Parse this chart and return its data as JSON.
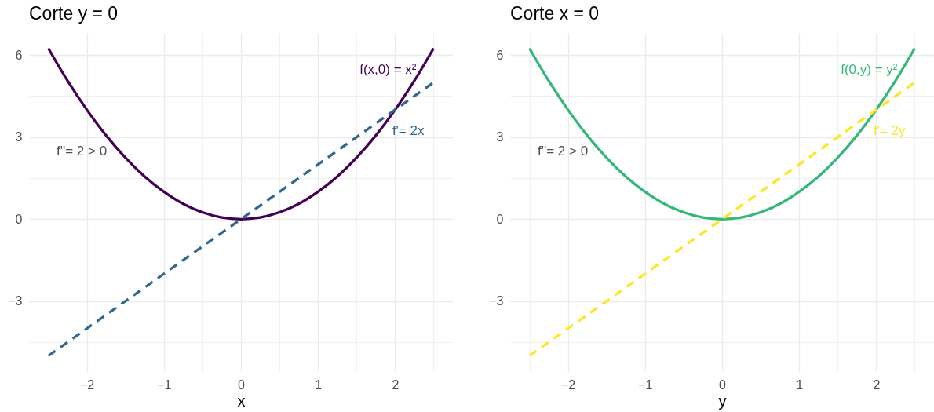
{
  "chart_data": [
    {
      "type": "line",
      "title": "Corte y = 0",
      "xlabel": "x",
      "series": [
        {
          "name": "f(x,0) = x²",
          "color": "#440154",
          "line_style": "solid",
          "x": [
            -2.5,
            -2.25,
            -2,
            -1.75,
            -1.5,
            -1.25,
            -1,
            -0.75,
            -0.5,
            -0.25,
            0,
            0.25,
            0.5,
            0.75,
            1,
            1.25,
            1.5,
            1.75,
            2,
            2.25,
            2.5
          ],
          "values": [
            6.25,
            5.06,
            4,
            3.06,
            2.25,
            1.56,
            1,
            0.56,
            0.25,
            0.06,
            0,
            0.06,
            0.25,
            0.56,
            1,
            1.56,
            2.25,
            3.06,
            4,
            5.06,
            6.25
          ]
        },
        {
          "name": "f'= 2x",
          "color": "#31688e",
          "line_style": "dashed",
          "x": [
            -2.5,
            2.5
          ],
          "values": [
            -5,
            5
          ]
        }
      ],
      "annotations": [
        "f''= 2 > 0"
      ],
      "xlim": [
        -2.75,
        2.75
      ],
      "ylim": [
        -5.56,
        6.81
      ],
      "xticks": [
        {
          "value": -2.5,
          "label": null
        },
        {
          "value": -2,
          "label": "−2"
        },
        {
          "value": -1.5,
          "label": null
        },
        {
          "value": -1,
          "label": "−1"
        },
        {
          "value": -0.5,
          "label": null
        },
        0,
        {
          "value": 0.5,
          "label": null
        },
        1,
        {
          "value": 1.5,
          "label": null
        },
        2,
        {
          "value": 2.5,
          "label": null
        }
      ],
      "yticks": [
        {
          "value": -4.5,
          "label": null
        },
        {
          "value": -3,
          "label": "−3"
        },
        {
          "value": -1.5,
          "label": null
        },
        0,
        {
          "value": 1.5,
          "label": null
        },
        3,
        {
          "value": 4.5,
          "label": null
        },
        6
      ],
      "grid": true
    },
    {
      "type": "line",
      "title": "Corte x = 0",
      "xlabel": "y",
      "series": [
        {
          "name": "f(0,y) = y²",
          "color": "#35b779",
          "line_style": "solid",
          "x": [
            -2.5,
            -2.25,
            -2,
            -1.75,
            -1.5,
            -1.25,
            -1,
            -0.75,
            -0.5,
            -0.25,
            0,
            0.25,
            0.5,
            0.75,
            1,
            1.25,
            1.5,
            1.75,
            2,
            2.25,
            2.5
          ],
          "values": [
            6.25,
            5.06,
            4,
            3.06,
            2.25,
            1.56,
            1,
            0.56,
            0.25,
            0.06,
            0,
            0.06,
            0.25,
            0.56,
            1,
            1.56,
            2.25,
            3.06,
            4,
            5.06,
            6.25
          ]
        },
        {
          "name": "f'= 2y",
          "color": "#fde725",
          "line_style": "dashed",
          "x": [
            -2.5,
            2.5
          ],
          "values": [
            -5,
            5
          ]
        }
      ],
      "annotations": [
        "f''= 2 > 0"
      ],
      "xlim": [
        -2.75,
        2.75
      ],
      "ylim": [
        -5.56,
        6.81
      ],
      "xticks": [
        {
          "value": -2.5,
          "label": null
        },
        {
          "value": -2,
          "label": "−2"
        },
        {
          "value": -1.5,
          "label": null
        },
        {
          "value": -1,
          "label": "−1"
        },
        {
          "value": -0.5,
          "label": null
        },
        0,
        {
          "value": 0.5,
          "label": null
        },
        1,
        {
          "value": 1.5,
          "label": null
        },
        2,
        {
          "value": 2.5,
          "label": null
        }
      ],
      "yticks": [
        {
          "value": -4.5,
          "label": null
        },
        {
          "value": -3,
          "label": "−3"
        },
        {
          "value": -1.5,
          "label": null
        },
        0,
        {
          "value": 1.5,
          "label": null
        },
        3,
        {
          "value": 4.5,
          "label": null
        },
        6
      ],
      "grid": true
    }
  ]
}
